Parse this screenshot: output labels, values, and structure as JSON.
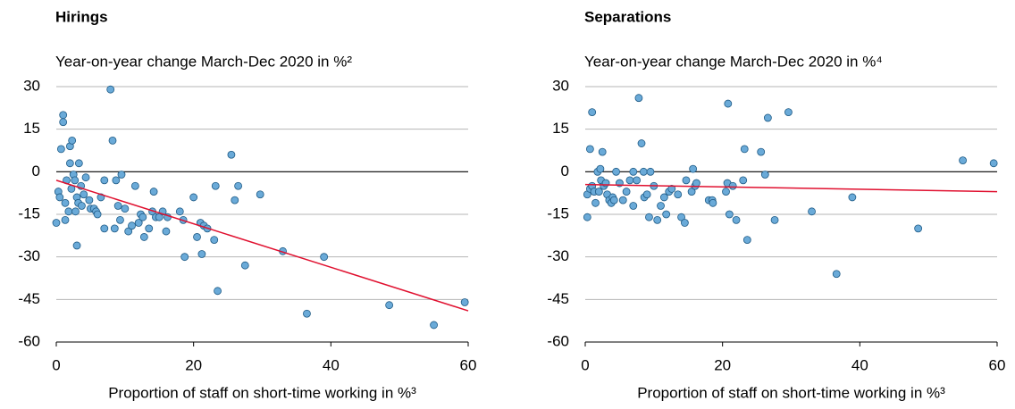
{
  "chart_data": [
    {
      "type": "scatter",
      "title": "Hirings",
      "subtitle": "Year-on-year change March-Dec 2020 in %²",
      "x_label": "Proportion of staff on short-time working in %³",
      "xlim": [
        0,
        60
      ],
      "ylim": [
        -60,
        30
      ],
      "xticks": [
        0,
        20,
        40,
        60
      ],
      "yticks": [
        30,
        15,
        0,
        -15,
        -30,
        -45,
        -60
      ],
      "grid": true,
      "color": "#6aaad8",
      "x": [
        0,
        0.3,
        0.5,
        1,
        1,
        0.7,
        1.5,
        1.3,
        1.3,
        1.8,
        2,
        2,
        2.3,
        2.2,
        2.5,
        2.7,
        2.8,
        3,
        3,
        3.2,
        3.3,
        3.6,
        3.7,
        4,
        4.3,
        4.8,
        5,
        5.5,
        5.8,
        6,
        6.5,
        7,
        7,
        7.9,
        8.2,
        8.5,
        8.7,
        9,
        9.3,
        9.5,
        10,
        10.5,
        11,
        11.5,
        12,
        12.3,
        12.6,
        12.8,
        13.5,
        14,
        14.2,
        14.5,
        15,
        15.5,
        16,
        16.2,
        18,
        18.5,
        18.7,
        20,
        20.5,
        21,
        21.2,
        21.5,
        22,
        23,
        23.2,
        23.5,
        25.5,
        26,
        26.5,
        27.5,
        29.7,
        33,
        36.5,
        39,
        48.5,
        55,
        59.5
      ],
      "y": [
        -18,
        -7,
        -9,
        20,
        17.5,
        8,
        -3,
        -11,
        -17,
        -14,
        9,
        3,
        11,
        -6,
        -1,
        -3,
        -14,
        -26,
        -9,
        -11,
        3,
        -5,
        -12,
        -8,
        -2,
        -10,
        -13,
        -13,
        -14,
        -15,
        -9,
        -20,
        -3,
        29,
        11,
        -20,
        -3,
        -12,
        -17,
        -1,
        -13,
        -21,
        -19,
        -5,
        -18,
        -15,
        -16,
        -23,
        -20,
        -14,
        -7,
        -16,
        -16,
        -14,
        -21,
        -16,
        -14,
        -17,
        -30,
        -9,
        -23,
        -18,
        -29,
        -19,
        -20,
        -24,
        -5,
        -42,
        6,
        -10,
        -5,
        -33,
        -8,
        -28,
        -50,
        -30,
        -47,
        -54,
        -46
      ],
      "trend": {
        "x": [
          0,
          60
        ],
        "y": [
          -3,
          -49
        ],
        "color": "#e0102f"
      }
    },
    {
      "type": "scatter",
      "title": "Separations",
      "subtitle": "Year-on-year change March-Dec 2020 in %⁴",
      "x_label": "Proportion of staff on short-time working in %³",
      "xlim": [
        0,
        60
      ],
      "ylim": [
        -60,
        30
      ],
      "xticks": [
        0,
        20,
        40,
        60
      ],
      "yticks": [
        30,
        15,
        0,
        -15,
        -30,
        -45,
        -60
      ],
      "grid": true,
      "color": "#6aaad8",
      "x": [
        0.3,
        0.3,
        0.7,
        0.7,
        1,
        1,
        1.3,
        1.5,
        1.8,
        2,
        2.2,
        2.5,
        2.3,
        2.7,
        3,
        3.2,
        3.5,
        3.8,
        4,
        4.2,
        4.5,
        5,
        5.5,
        6,
        6.5,
        7,
        7,
        7.5,
        7.8,
        8.2,
        8.5,
        8.6,
        9,
        9.3,
        9.5,
        10,
        10.5,
        11,
        11.5,
        11.8,
        12.2,
        12.6,
        13.5,
        14,
        14.5,
        14.7,
        15.5,
        15.7,
        16,
        16.2,
        18,
        18.5,
        18.6,
        20.5,
        20.7,
        20.8,
        21,
        21.5,
        22,
        23,
        23.2,
        23.6,
        25.6,
        26.2,
        26.6,
        27.6,
        29.6,
        33,
        36.6,
        38.9,
        48.5,
        55,
        59.5
      ],
      "y": [
        -16,
        -8,
        -6,
        8,
        21,
        -5,
        -7,
        -11,
        0,
        -7,
        1,
        7,
        -3,
        -5,
        -4,
        -8,
        -10,
        -11,
        -9,
        -10,
        0,
        -4,
        -10,
        -7,
        -3,
        0,
        -12,
        -3,
        26,
        10,
        0,
        -9,
        -8,
        -16,
        0,
        -5,
        -17,
        -12,
        -9,
        -15,
        -7,
        -6,
        -8,
        -16,
        -18,
        -3,
        -7,
        1,
        -5,
        -4,
        -10,
        -10,
        -11,
        -7,
        -4,
        24,
        -15,
        -5,
        -17,
        -3,
        8,
        -24,
        7,
        -1,
        19,
        -17,
        21,
        -14,
        -36,
        -9,
        -20,
        4,
        3
      ],
      "trend": {
        "x": [
          0,
          60
        ],
        "y": [
          -4.5,
          -7
        ],
        "color": "#e0102f"
      }
    }
  ]
}
